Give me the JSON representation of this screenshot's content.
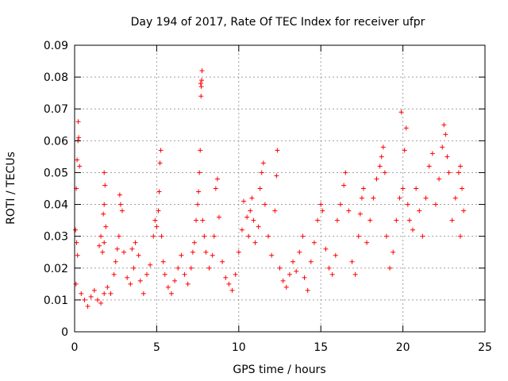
{
  "chart_data": {
    "type": "scatter",
    "title": "Day 194 of 2017, Rate Of TEC Index for receiver ufpr",
    "xlabel": "GPS time / hours",
    "ylabel": "ROTI / TECUs",
    "xlim": [
      0,
      25
    ],
    "ylim": [
      0,
      0.09
    ],
    "xticks": [
      "0",
      "5",
      "10",
      "15",
      "20",
      "25"
    ],
    "yticks": [
      "0",
      "0.01",
      "0.02",
      "0.03",
      "0.04",
      "0.05",
      "0.06",
      "0.07",
      "0.08",
      "0.09"
    ],
    "grid": true,
    "marker": "plus",
    "series_color": "#ff0000",
    "points": [
      [
        0.05,
        0.032
      ],
      [
        0.1,
        0.045
      ],
      [
        0.15,
        0.054
      ],
      [
        0.2,
        0.06
      ],
      [
        0.22,
        0.066
      ],
      [
        0.25,
        0.061
      ],
      [
        0.3,
        0.052
      ],
      [
        0.12,
        0.028
      ],
      [
        0.18,
        0.024
      ],
      [
        0.08,
        0.015
      ],
      [
        0.4,
        0.012
      ],
      [
        0.6,
        0.01
      ],
      [
        0.8,
        0.008
      ],
      [
        1.0,
        0.011
      ],
      [
        1.2,
        0.013
      ],
      [
        1.4,
        0.01
      ],
      [
        1.6,
        0.009
      ],
      [
        1.8,
        0.012
      ],
      [
        2.0,
        0.014
      ],
      [
        2.2,
        0.012
      ],
      [
        2.4,
        0.018
      ],
      [
        1.5,
        0.027
      ],
      [
        1.6,
        0.03
      ],
      [
        1.7,
        0.025
      ],
      [
        1.8,
        0.028
      ],
      [
        1.9,
        0.033
      ],
      [
        1.75,
        0.037
      ],
      [
        1.8,
        0.04
      ],
      [
        1.85,
        0.046
      ],
      [
        1.8,
        0.05
      ],
      [
        2.5,
        0.022
      ],
      [
        2.6,
        0.026
      ],
      [
        2.7,
        0.03
      ],
      [
        2.8,
        0.04
      ],
      [
        2.75,
        0.043
      ],
      [
        2.9,
        0.038
      ],
      [
        3.0,
        0.025
      ],
      [
        3.2,
        0.017
      ],
      [
        3.4,
        0.015
      ],
      [
        3.6,
        0.02
      ],
      [
        3.5,
        0.026
      ],
      [
        3.7,
        0.028
      ],
      [
        3.9,
        0.024
      ],
      [
        4.0,
        0.016
      ],
      [
        4.2,
        0.012
      ],
      [
        4.4,
        0.018
      ],
      [
        4.6,
        0.021
      ],
      [
        4.8,
        0.03
      ],
      [
        4.9,
        0.035
      ],
      [
        5.0,
        0.033
      ],
      [
        5.1,
        0.038
      ],
      [
        5.15,
        0.044
      ],
      [
        5.2,
        0.053
      ],
      [
        5.25,
        0.057
      ],
      [
        5.3,
        0.03
      ],
      [
        5.4,
        0.022
      ],
      [
        5.5,
        0.018
      ],
      [
        5.7,
        0.014
      ],
      [
        5.9,
        0.012
      ],
      [
        6.1,
        0.016
      ],
      [
        6.3,
        0.02
      ],
      [
        6.5,
        0.024
      ],
      [
        6.7,
        0.018
      ],
      [
        6.9,
        0.015
      ],
      [
        7.1,
        0.02
      ],
      [
        7.2,
        0.025
      ],
      [
        7.3,
        0.028
      ],
      [
        7.4,
        0.035
      ],
      [
        7.5,
        0.04
      ],
      [
        7.55,
        0.044
      ],
      [
        7.6,
        0.05
      ],
      [
        7.65,
        0.057
      ],
      [
        7.7,
        0.074
      ],
      [
        7.72,
        0.077
      ],
      [
        7.74,
        0.079
      ],
      [
        7.76,
        0.082
      ],
      [
        7.68,
        0.078
      ],
      [
        7.8,
        0.035
      ],
      [
        7.9,
        0.03
      ],
      [
        8.0,
        0.025
      ],
      [
        8.2,
        0.02
      ],
      [
        8.4,
        0.024
      ],
      [
        8.5,
        0.03
      ],
      [
        8.6,
        0.045
      ],
      [
        8.7,
        0.048
      ],
      [
        8.8,
        0.036
      ],
      [
        9.0,
        0.022
      ],
      [
        9.2,
        0.017
      ],
      [
        9.4,
        0.015
      ],
      [
        9.6,
        0.013
      ],
      [
        9.8,
        0.018
      ],
      [
        10.0,
        0.025
      ],
      [
        10.2,
        0.032
      ],
      [
        10.3,
        0.041
      ],
      [
        10.5,
        0.036
      ],
      [
        10.6,
        0.03
      ],
      [
        10.7,
        0.038
      ],
      [
        10.8,
        0.042
      ],
      [
        10.9,
        0.035
      ],
      [
        11.0,
        0.028
      ],
      [
        11.2,
        0.033
      ],
      [
        11.3,
        0.045
      ],
      [
        11.4,
        0.05
      ],
      [
        11.5,
        0.053
      ],
      [
        11.6,
        0.04
      ],
      [
        11.8,
        0.03
      ],
      [
        12.0,
        0.024
      ],
      [
        12.2,
        0.038
      ],
      [
        12.3,
        0.049
      ],
      [
        12.35,
        0.057
      ],
      [
        12.5,
        0.02
      ],
      [
        12.7,
        0.016
      ],
      [
        12.9,
        0.014
      ],
      [
        13.1,
        0.018
      ],
      [
        13.3,
        0.022
      ],
      [
        13.5,
        0.019
      ],
      [
        13.7,
        0.025
      ],
      [
        13.9,
        0.03
      ],
      [
        14.0,
        0.017
      ],
      [
        14.2,
        0.013
      ],
      [
        14.4,
        0.022
      ],
      [
        14.6,
        0.028
      ],
      [
        14.8,
        0.035
      ],
      [
        15.0,
        0.04
      ],
      [
        15.1,
        0.038
      ],
      [
        15.3,
        0.026
      ],
      [
        15.5,
        0.02
      ],
      [
        15.7,
        0.018
      ],
      [
        15.9,
        0.024
      ],
      [
        16.0,
        0.035
      ],
      [
        16.2,
        0.04
      ],
      [
        16.4,
        0.046
      ],
      [
        16.5,
        0.05
      ],
      [
        16.7,
        0.038
      ],
      [
        16.9,
        0.022
      ],
      [
        17.1,
        0.018
      ],
      [
        17.3,
        0.03
      ],
      [
        17.4,
        0.037
      ],
      [
        17.5,
        0.042
      ],
      [
        17.6,
        0.045
      ],
      [
        17.8,
        0.028
      ],
      [
        18.0,
        0.035
      ],
      [
        18.2,
        0.042
      ],
      [
        18.4,
        0.048
      ],
      [
        18.6,
        0.052
      ],
      [
        18.7,
        0.055
      ],
      [
        18.8,
        0.058
      ],
      [
        18.9,
        0.05
      ],
      [
        19.0,
        0.03
      ],
      [
        19.2,
        0.02
      ],
      [
        19.4,
        0.025
      ],
      [
        19.6,
        0.035
      ],
      [
        19.8,
        0.042
      ],
      [
        19.9,
        0.069
      ],
      [
        20.0,
        0.045
      ],
      [
        20.1,
        0.057
      ],
      [
        20.2,
        0.064
      ],
      [
        20.3,
        0.04
      ],
      [
        20.4,
        0.035
      ],
      [
        20.6,
        0.032
      ],
      [
        20.8,
        0.045
      ],
      [
        21.0,
        0.038
      ],
      [
        21.2,
        0.03
      ],
      [
        21.4,
        0.042
      ],
      [
        21.6,
        0.052
      ],
      [
        21.8,
        0.056
      ],
      [
        22.0,
        0.04
      ],
      [
        22.2,
        0.048
      ],
      [
        22.4,
        0.058
      ],
      [
        22.5,
        0.065
      ],
      [
        22.6,
        0.062
      ],
      [
        22.7,
        0.055
      ],
      [
        22.8,
        0.05
      ],
      [
        23.0,
        0.035
      ],
      [
        23.2,
        0.042
      ],
      [
        23.4,
        0.05
      ],
      [
        23.5,
        0.052
      ],
      [
        23.6,
        0.045
      ],
      [
        23.7,
        0.038
      ],
      [
        23.5,
        0.03
      ]
    ]
  }
}
